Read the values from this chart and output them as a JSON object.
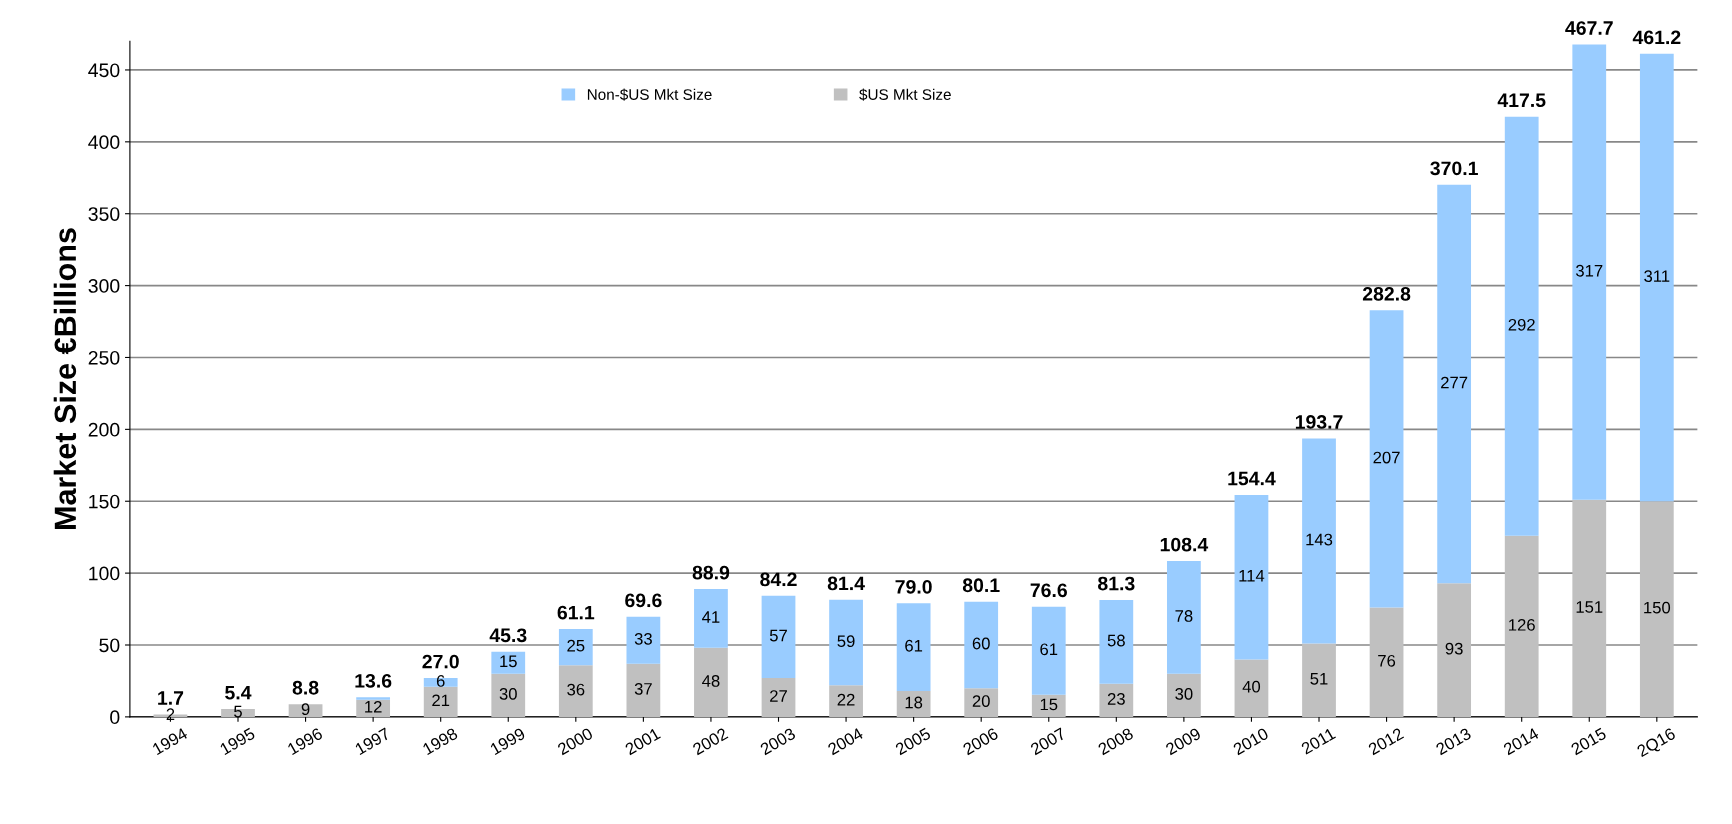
{
  "chart_data": {
    "type": "bar",
    "stacked": true,
    "ylabel": "Market Size €Billions",
    "categories": [
      "1994",
      "1995",
      "1996",
      "1997",
      "1998",
      "1999",
      "2000",
      "2001",
      "2002",
      "2003",
      "2004",
      "2005",
      "2006",
      "2007",
      "2008",
      "2009",
      "2010",
      "2011",
      "2012",
      "2013",
      "2014",
      "2015",
      "2Q16"
    ],
    "series": [
      {
        "name": "$US Mkt Size",
        "color": "#c0c0c0",
        "values": [
          1.7,
          5.4,
          8.8,
          12,
          21,
          30,
          36,
          37,
          48,
          27,
          22,
          18,
          20,
          15.4,
          23,
          30,
          40,
          51,
          76,
          93,
          126,
          151,
          150
        ],
        "value_labels": [
          "2",
          "5",
          "9",
          "12",
          "21",
          "30",
          "36",
          "37",
          "48",
          "27",
          "22",
          "18",
          "20",
          "15",
          "23",
          "30",
          "40",
          "51",
          "76",
          "93",
          "126",
          "151",
          "150"
        ]
      },
      {
        "name": "Non-$US Mkt Size",
        "color": "#99ccff",
        "values": [
          null,
          null,
          null,
          1.6,
          6,
          15.3,
          25.1,
          32.6,
          40.9,
          57.2,
          59.4,
          61.0,
          60.1,
          61.2,
          58.3,
          78.4,
          114.4,
          142.7,
          206.8,
          277.1,
          291.5,
          316.7,
          311.2
        ],
        "value_labels": [
          null,
          null,
          null,
          null,
          "6",
          "15",
          "25",
          "33",
          "41",
          "57",
          "59",
          "61",
          "60",
          "61",
          "58",
          "78",
          "114",
          "143",
          "207",
          "277",
          "292",
          "317",
          "311"
        ]
      }
    ],
    "totals": [
      "1.7",
      "5.4",
      "8.8",
      "13.6",
      "27.0",
      "45.3",
      "61.1",
      "69.6",
      "88.9",
      "84.2",
      "81.4",
      "79.0",
      "80.1",
      "76.6",
      "81.3",
      "108.4",
      "154.4",
      "193.7",
      "282.8",
      "370.1",
      "417.5",
      "467.7",
      "461.2"
    ],
    "ylim": [
      0,
      470
    ],
    "yticks": [
      0,
      50,
      100,
      150,
      200,
      250,
      300,
      350,
      400,
      450
    ],
    "grid": "y",
    "legend": "top"
  }
}
